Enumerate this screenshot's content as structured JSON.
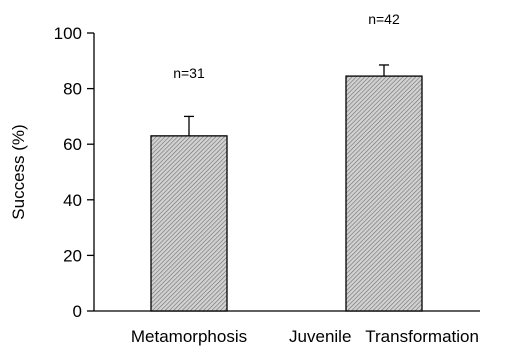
{
  "chart_data": {
    "type": "bar",
    "categories": [
      "Metamorphosis",
      "Juvenile   Transformation"
    ],
    "values": [
      63,
      84.5
    ],
    "errors": [
      7,
      4
    ],
    "annotations": [
      "n=31",
      "n=42"
    ],
    "ylabel": "Success (%)",
    "xlabel": "",
    "ylim": [
      0,
      100
    ],
    "yticks": [
      0,
      20,
      40,
      60,
      80,
      100
    ],
    "ytick_labels": [
      "0",
      "20",
      "40",
      "60",
      "80",
      "100"
    ],
    "grid": false,
    "bar_fill": "#a9a9a9",
    "bar_stroke": "#000000"
  }
}
